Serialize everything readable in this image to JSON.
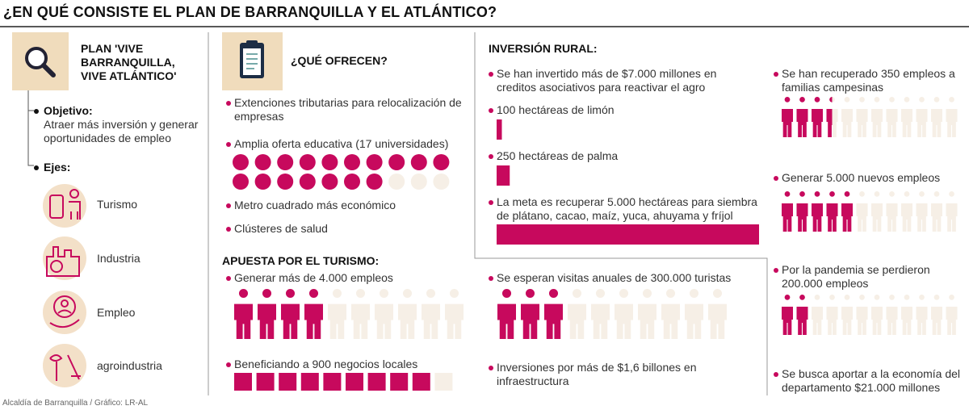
{
  "title": "¿EN QUÉ CONSISTE EL PLAN DE BARRANQUILLA Y EL ATLÁNTICO?",
  "plan": {
    "heading": "PLAN 'VIVE BARRANQUILLA, VIVE ATLÁNTICO'",
    "objective_label": "Objetivo:",
    "objective": "Atraer más inversión y generar oportunidades de empleo",
    "axes_label": "Ejes:",
    "axes": [
      "Turismo",
      "Industria",
      "Empleo",
      "agroindustria"
    ]
  },
  "offer": {
    "heading": "¿QUÉ OFRECEN?",
    "items": [
      "Extenciones tributarias para relocalización de empresas",
      "Amplia oferta educativa (17 universidades)",
      "Metro cuadrado más económico",
      "Clústeres de salud"
    ],
    "universities": {
      "filled": 17,
      "total": 20
    }
  },
  "tourism": {
    "heading": "APUESTA POR EL TURISMO:",
    "items": [
      {
        "text": "Generar más de 4.000 empleos",
        "filled": 4,
        "total": 10
      },
      {
        "text": "Beneficiando a 900 negocios locales",
        "filled": 9,
        "total": 10
      },
      {
        "text": "Se esperan visitas anuales de 300.000 turistas",
        "filled": 3,
        "total": 10
      },
      {
        "text": "Inversiones por más de $1,6 billones en infraestructura"
      }
    ]
  },
  "rural": {
    "heading": "INVERSIÓN RURAL:",
    "items": [
      {
        "text": "Se han invertido más de $7.000 millones en creditos asociativos para reactivar el agro"
      },
      {
        "text": "100 hectáreas de limón",
        "hectares": 100
      },
      {
        "text": "250 hectáreas de palma",
        "hectares": 250
      },
      {
        "text": "La meta es recuperar 5.000 hectáreas para siembra de plátano, cacao, maíz, yuca, ahuyama y fríjol",
        "hectares": 5000
      }
    ]
  },
  "employment": [
    {
      "text": "Se han recuperado 350 empleos a familias campesinas",
      "filled": 3.5,
      "total": 12
    },
    {
      "text": "Generar 5.000 nuevos empleos",
      "filled": 5,
      "total": 12
    },
    {
      "text": "Por la pandemia se perdieron 200.000 empleos",
      "filled": 2,
      "total": 12
    },
    {
      "text": "Se busca aportar a la economía del departamento $21.000 millones"
    }
  ],
  "source": "Alcaldía de Barranquilla / Gráfico: LR-AL"
}
